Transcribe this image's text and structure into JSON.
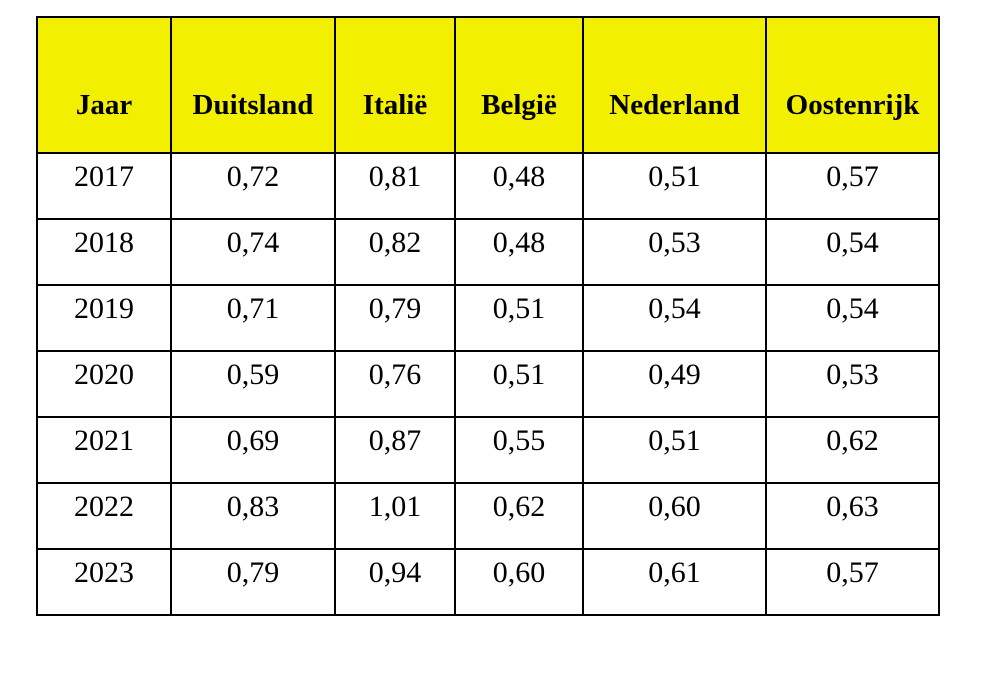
{
  "table": {
    "header": [
      "Jaar",
      "Duitsland",
      "Italië",
      "België",
      "Nederland",
      "Oostenrijk"
    ],
    "rows": [
      [
        "2017",
        "0,72",
        "0,81",
        "0,48",
        "0,51",
        "0,57"
      ],
      [
        "2018",
        "0,74",
        "0,82",
        "0,48",
        "0,53",
        "0,54"
      ],
      [
        "2019",
        "0,71",
        "0,79",
        "0,51",
        "0,54",
        "0,54"
      ],
      [
        "2020",
        "0,59",
        "0,76",
        "0,51",
        "0,49",
        "0,53"
      ],
      [
        "2021",
        "0,69",
        "0,87",
        "0,55",
        "0,51",
        "0,62"
      ],
      [
        "2022",
        "0,83",
        "1,01",
        "0,62",
        "0,60",
        "0,63"
      ],
      [
        "2023",
        "0,79",
        "0,94",
        "0,60",
        "0,61",
        "0,57"
      ]
    ]
  }
}
